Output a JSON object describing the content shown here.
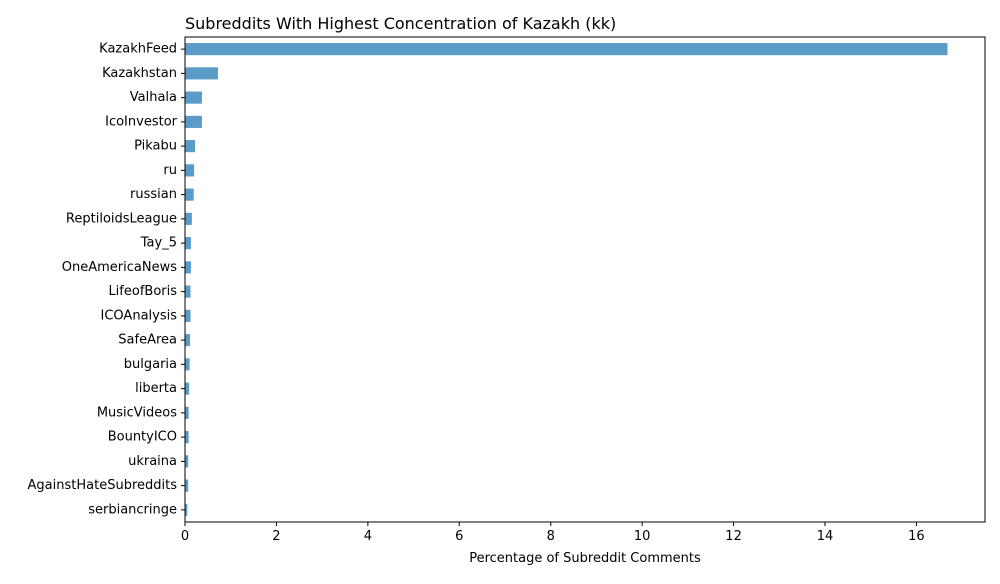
{
  "chart_data": {
    "type": "bar",
    "orientation": "horizontal",
    "title": "Subreddits With Highest Concentration of Kazakh (kk)",
    "xlabel": "Percentage of Subreddit Comments",
    "ylabel": "",
    "xlim": [
      0,
      17.5
    ],
    "xticks": [
      0,
      2,
      4,
      6,
      8,
      10,
      12,
      14,
      16
    ],
    "grid": false,
    "bar_color": "#5b9bc8",
    "categories": [
      "KazakhFeed",
      "Kazakhstan",
      "Valhala",
      "IcoInvestor",
      "Pikabu",
      "ru",
      "russian",
      "ReptiloidsLeague",
      "Tay_5",
      "OneAmericaNews",
      "LifeofBoris",
      "ICOAnalysis",
      "SafeArea",
      "bulgaria",
      "liberta",
      "MusicVideos",
      "BountyICO",
      "ukraina",
      "AgainstHateSubreddits",
      "serbiancringe"
    ],
    "values": [
      16.68,
      0.72,
      0.37,
      0.37,
      0.22,
      0.2,
      0.19,
      0.15,
      0.13,
      0.13,
      0.12,
      0.12,
      0.11,
      0.1,
      0.09,
      0.08,
      0.08,
      0.07,
      0.07,
      0.05
    ]
  }
}
